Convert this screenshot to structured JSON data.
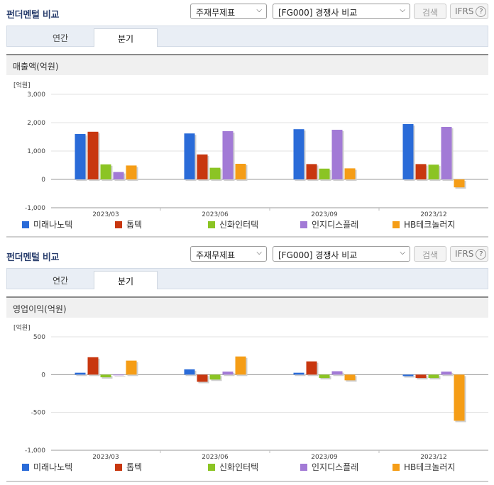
{
  "panels": [
    {
      "title": "펀더멘털 비교",
      "select_type": "주재무제표",
      "select_peer": "[FG000] 경쟁사 비교",
      "search_label": "검색",
      "ifrs_label": "IFRS",
      "help_glyph": "?",
      "tabs": [
        "연간",
        "분기"
      ],
      "active_tab": 1,
      "section_title": "매출액(억원)",
      "chart_data": {
        "type": "bar",
        "unit_label": "[억원]",
        "categories": [
          "2023/03",
          "2023/06",
          "2023/09",
          "2023/12"
        ],
        "ylim": [
          -1000,
          3000
        ],
        "yticks": [
          -1000,
          0,
          1000,
          2000,
          3000
        ],
        "ytick_labels": [
          "-1,000",
          "0",
          "1,000",
          "2,000",
          "3,000"
        ],
        "grid": true,
        "legend_position": "bottom",
        "series": [
          {
            "name": "미래나노텍",
            "color": "#2a6bd8",
            "values": [
              1600,
              1620,
              1770,
              1950
            ]
          },
          {
            "name": "톱텍",
            "color": "#c8370f",
            "values": [
              1680,
              880,
              540,
              540
            ]
          },
          {
            "name": "신화인터텍",
            "color": "#8bc424",
            "values": [
              530,
              410,
              380,
              520
            ]
          },
          {
            "name": "인지디스플레",
            "color": "#a27ad6",
            "values": [
              260,
              1700,
              1750,
              1850
            ]
          },
          {
            "name": "HB테크놀러지",
            "color": "#f59d16",
            "values": [
              490,
              550,
              390,
              -280
            ]
          }
        ]
      }
    },
    {
      "title": "펀더멘털 비교",
      "select_type": "주재무제표",
      "select_peer": "[FG000] 경쟁사 비교",
      "search_label": "검색",
      "ifrs_label": "IFRS",
      "help_glyph": "?",
      "tabs": [
        "연간",
        "분기"
      ],
      "active_tab": 1,
      "section_title": "영업이익(억원)",
      "chart_data": {
        "type": "bar",
        "unit_label": "[억원]",
        "categories": [
          "2023/03",
          "2023/06",
          "2023/09",
          "2023/12"
        ],
        "ylim": [
          -1000,
          500
        ],
        "yticks": [
          -1000,
          -500,
          0,
          500
        ],
        "ytick_labels": [
          "-1,000",
          "-500",
          "0",
          "500"
        ],
        "grid": true,
        "legend_position": "bottom",
        "series": [
          {
            "name": "미래나노텍",
            "color": "#2a6bd8",
            "values": [
              25,
              70,
              25,
              -20
            ]
          },
          {
            "name": "톱텍",
            "color": "#c8370f",
            "values": [
              230,
              -95,
              175,
              -45
            ]
          },
          {
            "name": "신화인터텍",
            "color": "#8bc424",
            "values": [
              -35,
              -65,
              -45,
              -45
            ]
          },
          {
            "name": "인지디스플레",
            "color": "#a27ad6",
            "values": [
              0,
              40,
              45,
              40
            ]
          },
          {
            "name": "HB테크놀러지",
            "color": "#f59d16",
            "values": [
              185,
              240,
              -75,
              -610
            ]
          }
        ]
      }
    }
  ]
}
